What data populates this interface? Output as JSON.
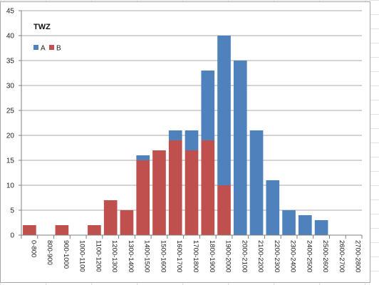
{
  "chart_data": {
    "type": "bar",
    "stacked": true,
    "title": "TWZ",
    "xlabel": "",
    "ylabel": "",
    "ylim": [
      0,
      45
    ],
    "yticks": [
      0,
      5,
      10,
      15,
      20,
      25,
      30,
      35,
      40,
      45
    ],
    "grid": true,
    "legend": "top-left",
    "categories": [
      "0-800",
      "800-900",
      "900-1000",
      "1000-1100",
      "1100-1200",
      "1200-1300",
      "1300-1400",
      "1400-1500",
      "1500-1600",
      "1600-1700",
      "1700-1800",
      "1800-1900",
      "1900-2000",
      "2000-2100",
      "2100-2200",
      "2200-2300",
      "2300-2400",
      "2400-2500",
      "2500-2600",
      "2600-2700",
      "2700-2800"
    ],
    "series": [
      {
        "name": "B",
        "color": "#c0504d",
        "values": [
          2,
          0,
          2,
          0,
          2,
          7,
          5,
          15,
          17,
          19,
          17,
          19,
          10,
          0,
          0,
          0,
          0,
          0,
          0,
          0,
          0
        ]
      },
      {
        "name": "A",
        "color": "#4f81bd",
        "values": [
          0,
          0,
          0,
          0,
          0,
          0,
          0,
          1,
          0,
          2,
          4,
          14,
          30,
          35,
          21,
          11,
          5,
          4,
          3,
          0,
          0
        ]
      }
    ],
    "legend_order": [
      "A",
      "B"
    ]
  }
}
